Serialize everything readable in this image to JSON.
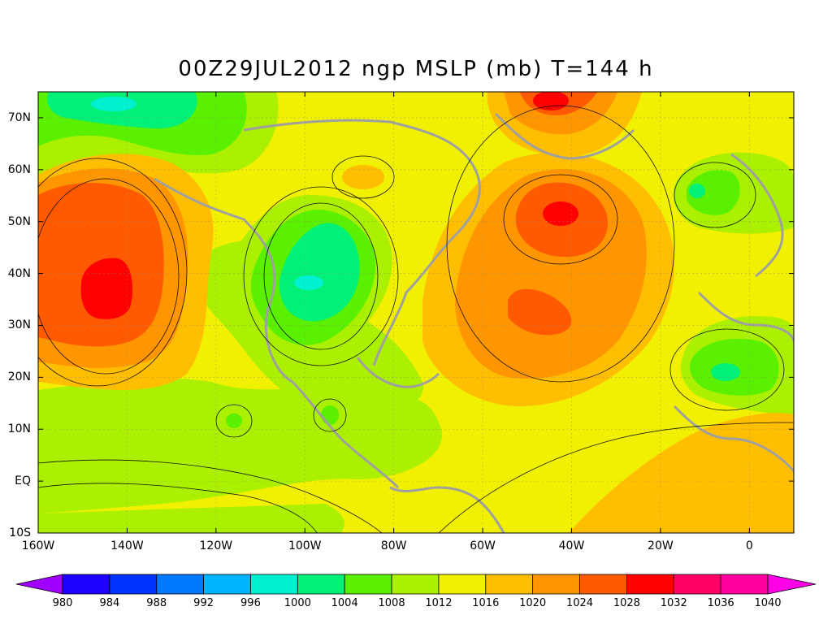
{
  "title": "00Z29JUL2012 ngp MSLP (mb) T=144 h",
  "map": {
    "lon_ticks": [
      {
        "label": "160W",
        "lon": -160
      },
      {
        "label": "140W",
        "lon": -140
      },
      {
        "label": "120W",
        "lon": -120
      },
      {
        "label": "100W",
        "lon": -100
      },
      {
        "label": "80W",
        "lon": -80
      },
      {
        "label": "60W",
        "lon": -60
      },
      {
        "label": "40W",
        "lon": -40
      },
      {
        "label": "20W",
        "lon": -20
      },
      {
        "label": "0",
        "lon": 0
      }
    ],
    "lat_ticks": [
      {
        "label": "70N",
        "lat": 70
      },
      {
        "label": "60N",
        "lat": 60
      },
      {
        "label": "50N",
        "lat": 50
      },
      {
        "label": "40N",
        "lat": 40
      },
      {
        "label": "30N",
        "lat": 30
      },
      {
        "label": "20N",
        "lat": 20
      },
      {
        "label": "10N",
        "lat": 10
      },
      {
        "label": "EQ",
        "lat": 0
      },
      {
        "label": "10S",
        "lat": -10
      }
    ],
    "extent": {
      "lon_min": -160,
      "lon_max": 10,
      "lat_min": -10,
      "lat_max": 75
    },
    "systems": [
      {
        "kind": "high",
        "lon": -146,
        "lat": 37,
        "value": 1030
      },
      {
        "kind": "high",
        "lon": -43,
        "lat": 51,
        "value": 1028
      },
      {
        "kind": "high",
        "lon": -45,
        "lat": 33,
        "value": 1026
      },
      {
        "kind": "high",
        "lon": -46,
        "lat": 72,
        "value": 1028
      },
      {
        "kind": "high",
        "lon": -86,
        "lat": 59,
        "value": 1018
      },
      {
        "kind": "low",
        "lon": -98,
        "lat": 39,
        "value": 1000
      },
      {
        "kind": "low",
        "lon": -137,
        "lat": 73,
        "value": 1000
      },
      {
        "kind": "low",
        "lon": -5,
        "lat": 21,
        "value": 1004
      },
      {
        "kind": "low",
        "lon": -10,
        "lat": 56,
        "value": 1006
      },
      {
        "kind": "low",
        "lon": -90,
        "lat": 12,
        "value": 1008
      },
      {
        "kind": "low",
        "lon": -116,
        "lat": 12,
        "value": 1010
      }
    ]
  },
  "colorbar": {
    "levels": [
      "980",
      "984",
      "988",
      "992",
      "996",
      "1000",
      "1004",
      "1008",
      "1012",
      "1016",
      "1020",
      "1024",
      "1028",
      "1032",
      "1036",
      "1040"
    ],
    "colors": [
      "#a000ff",
      "#1e00ff",
      "#0032ff",
      "#0078ff",
      "#00b4ff",
      "#00f0d2",
      "#00f078",
      "#5af000",
      "#aaf000",
      "#f0f000",
      "#ffbe00",
      "#ff9600",
      "#ff5a00",
      "#ff0000",
      "#ff0064",
      "#ff00a0",
      "#ff00e6"
    ]
  }
}
